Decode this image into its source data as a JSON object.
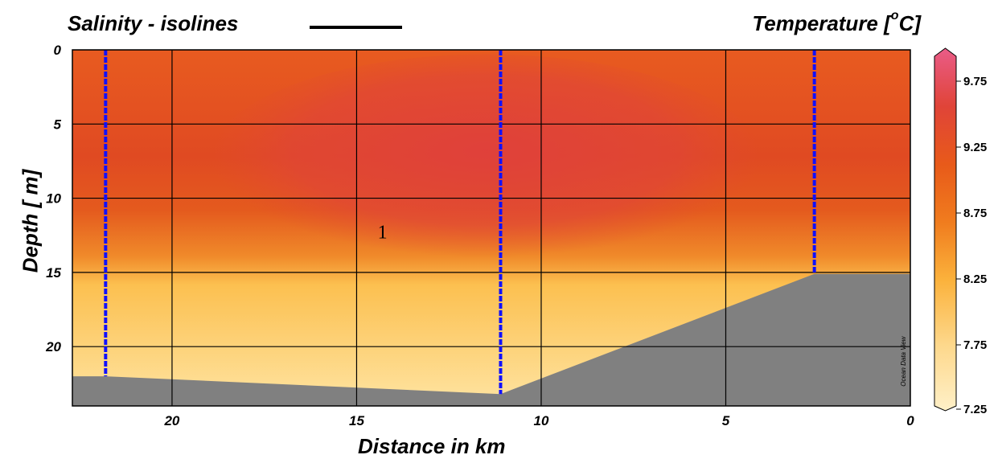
{
  "chart_data": {
    "type": "heatmap",
    "title": "Temperature [°C]",
    "legend_title": "Salinity - isolines",
    "xlabel": "Distance in km",
    "ylabel": "Depth [ m]",
    "xlim": [
      22.7,
      0
    ],
    "ylim": [
      0,
      24
    ],
    "x_ticks": [
      20,
      15,
      10,
      5,
      0
    ],
    "y_ticks": [
      0,
      5,
      10,
      15,
      20
    ],
    "grid": true,
    "colorbar": {
      "label": "Temperature [°C]",
      "range": [
        7.25,
        10.0
      ],
      "ticks": [
        9.75,
        9.25,
        8.75,
        8.25,
        7.75,
        7.25
      ],
      "tick_labels": [
        "9.75",
        "9.25",
        "8.75",
        "8.25",
        "7.75",
        "7.25"
      ]
    },
    "stations": [
      {
        "x": 21.8,
        "bottom_depth": 22.0
      },
      {
        "x": 11.1,
        "bottom_depth": 23.2
      },
      {
        "x": 2.6,
        "bottom_depth": 15.1
      }
    ],
    "bathymetry": [
      {
        "x": 22.7,
        "depth": 22.0
      },
      {
        "x": 21.8,
        "depth": 22.0
      },
      {
        "x": 11.1,
        "depth": 23.2
      },
      {
        "x": 2.6,
        "depth": 15.1
      },
      {
        "x": 0,
        "depth": 15.1
      }
    ],
    "temperature_layers": [
      {
        "depth_from": 0,
        "depth_to": 10,
        "value": 9.1
      },
      {
        "depth_from": 10,
        "depth_to": 15,
        "value": 8.8
      },
      {
        "depth_from": 15,
        "depth_to": 24,
        "value": 7.9
      }
    ],
    "annotations": [
      {
        "text": "1",
        "x": 14.3,
        "depth": 12.7
      }
    ],
    "credit": "Ocean Data View",
    "colors": {
      "background": "#ffffff",
      "bathymetry": "#808080",
      "station_line": "#1010ff",
      "grid": "#000000"
    }
  }
}
